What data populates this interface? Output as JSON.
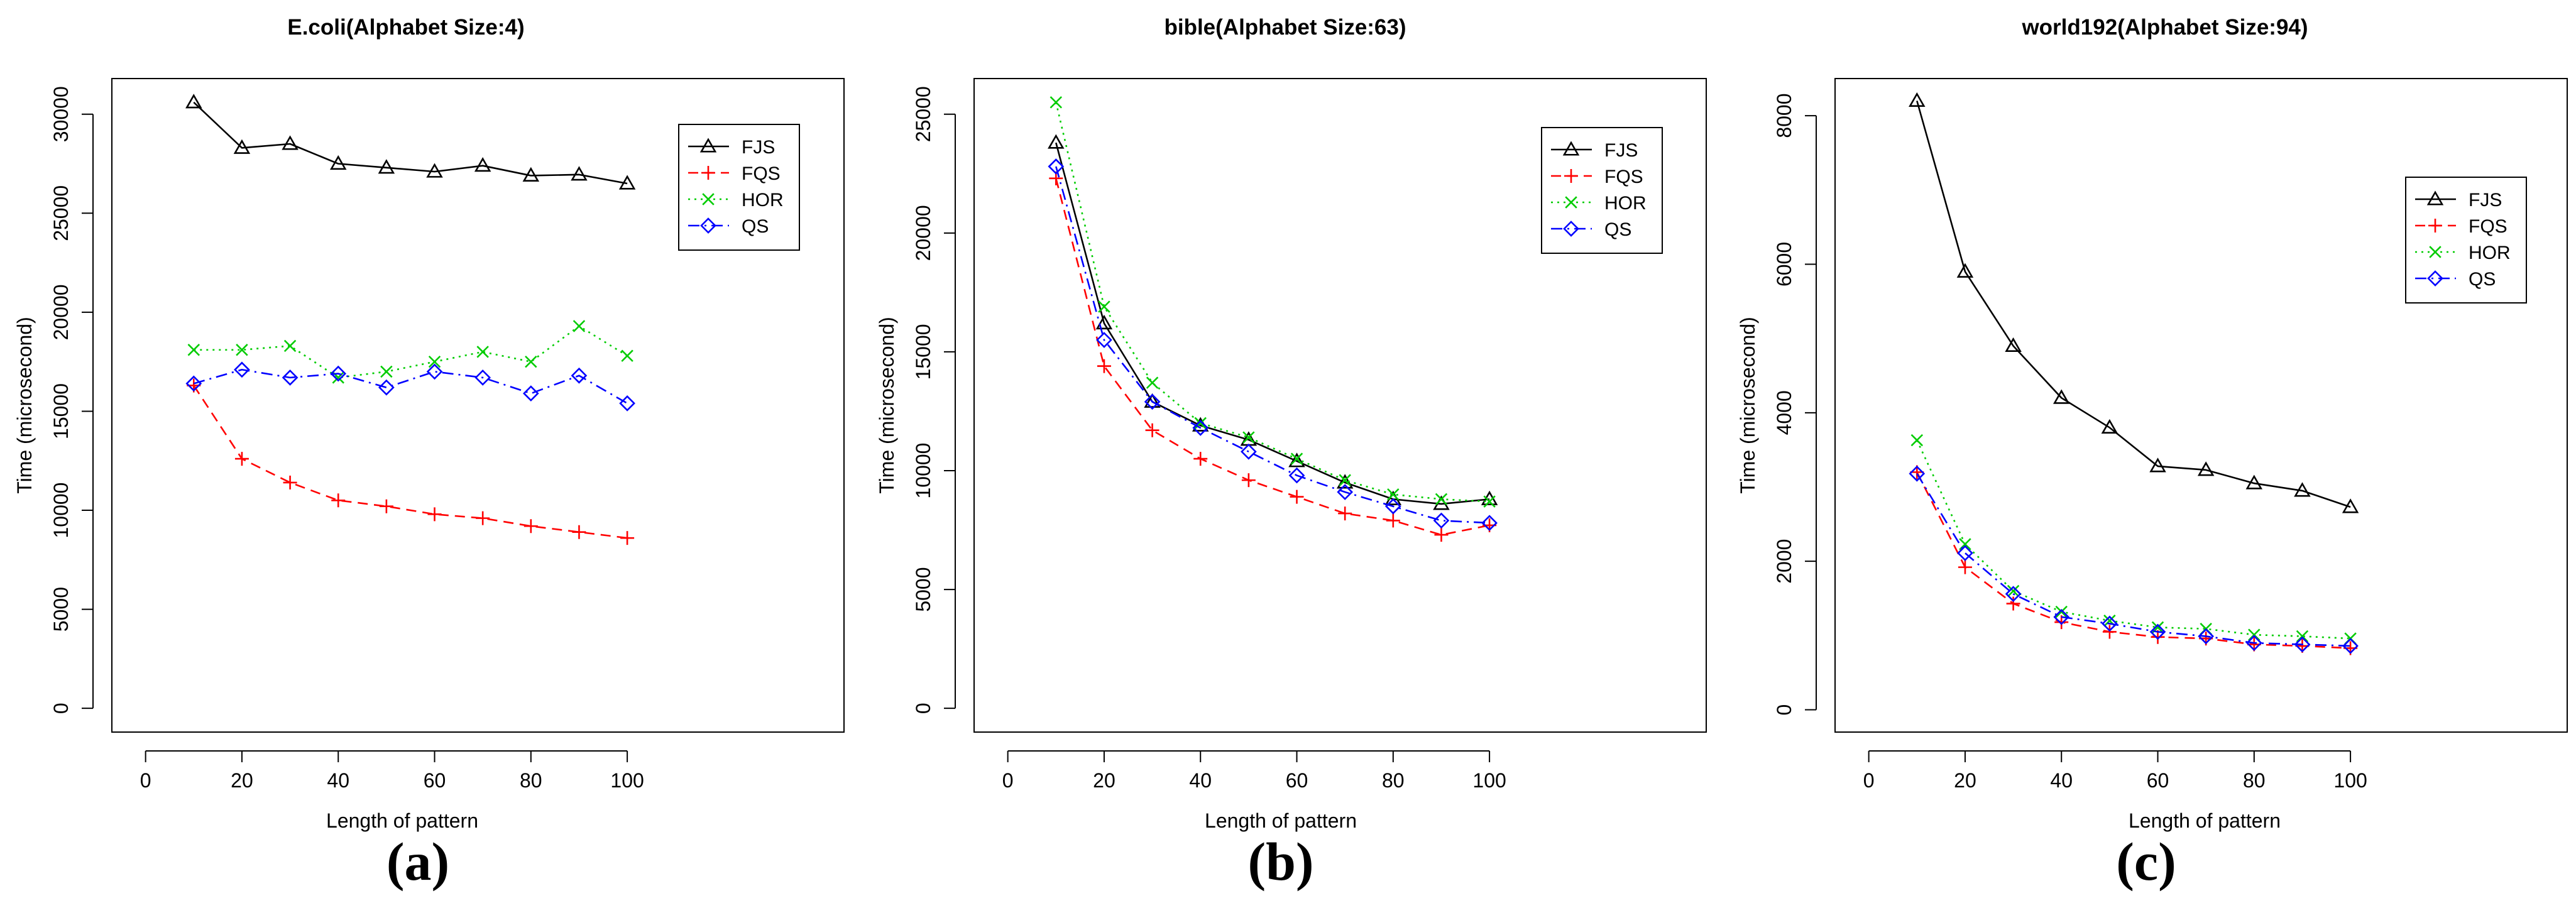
{
  "figure": {
    "panel_letters": [
      "(a)",
      "(b)",
      "(c)"
    ]
  },
  "chart_data": [
    {
      "type": "line",
      "title": "E.coli(Alphabet Size:4)",
      "xlabel": "Length of pattern",
      "ylabel": "Time (microsecond)",
      "xlim": [
        -7,
        145
      ],
      "ylim": [
        -1200,
        31800
      ],
      "xticks": [
        "0",
        "20",
        "40",
        "60",
        "80",
        "100"
      ],
      "yticks": [
        "0",
        "5000",
        "10000",
        "15000",
        "20000",
        "25000",
        "30000"
      ],
      "legend_position": "top-right",
      "x": [
        10,
        20,
        30,
        40,
        50,
        60,
        70,
        80,
        90,
        100
      ],
      "series": [
        {
          "name": "FJS",
          "color": "#000000",
          "marker": "triangle",
          "line": "solid",
          "values": [
            30600,
            28300,
            28500,
            27500,
            27300,
            27100,
            27400,
            26900,
            26950,
            26500
          ]
        },
        {
          "name": "FQS",
          "color": "#ff0000",
          "marker": "plus",
          "line": "dashed",
          "values": [
            16300,
            12600,
            11400,
            10500,
            10200,
            9800,
            9600,
            9200,
            8900,
            8600
          ]
        },
        {
          "name": "HOR",
          "color": "#00cc00",
          "marker": "cross",
          "line": "dotted",
          "values": [
            18100,
            18100,
            18300,
            16700,
            17000,
            17500,
            18000,
            17500,
            19300,
            17800
          ]
        },
        {
          "name": "QS",
          "color": "#0000ff",
          "marker": "diamond",
          "line": "dashdot",
          "values": [
            16400,
            17100,
            16700,
            16900,
            16200,
            17000,
            16700,
            15900,
            16800,
            15400
          ]
        }
      ]
    },
    {
      "type": "line",
      "title": "bible(Alphabet Size:63)",
      "xlabel": "Length of pattern",
      "ylabel": "Time (microsecond)",
      "xlim": [
        -7,
        145
      ],
      "ylim": [
        -1000,
        26500
      ],
      "xticks": [
        "0",
        "20",
        "40",
        "60",
        "80",
        "100"
      ],
      "yticks": [
        "0",
        "5000",
        "10000",
        "15000",
        "20000",
        "25000"
      ],
      "legend_position": "top-right",
      "x": [
        10,
        20,
        30,
        40,
        50,
        60,
        70,
        80,
        90,
        100
      ],
      "series": [
        {
          "name": "FJS",
          "color": "#000000",
          "marker": "triangle",
          "line": "solid",
          "values": [
            23800,
            16200,
            12900,
            11900,
            11300,
            10400,
            9500,
            8800,
            8600,
            8800
          ]
        },
        {
          "name": "FQS",
          "color": "#ff0000",
          "marker": "plus",
          "line": "dashed",
          "values": [
            22300,
            14400,
            11700,
            10500,
            9600,
            8900,
            8200,
            7900,
            7300,
            7700
          ]
        },
        {
          "name": "HOR",
          "color": "#00cc00",
          "marker": "cross",
          "line": "dotted",
          "values": [
            25500,
            16900,
            13700,
            12000,
            11400,
            10500,
            9600,
            9000,
            8800,
            8700
          ]
        },
        {
          "name": "QS",
          "color": "#0000ff",
          "marker": "diamond",
          "line": "dashdot",
          "values": [
            22800,
            15500,
            12900,
            11800,
            10800,
            9800,
            9100,
            8500,
            7900,
            7800
          ]
        }
      ]
    },
    {
      "type": "line",
      "title": "world192(Alphabet Size:94)",
      "xlabel": "Length of pattern",
      "ylabel": "Time (microsecond)",
      "xlim": [
        -7,
        145
      ],
      "ylim": [
        -300,
        8500
      ],
      "xticks": [
        "0",
        "20",
        "40",
        "60",
        "80",
        "100"
      ],
      "yticks": [
        "0",
        "2000",
        "4000",
        "6000",
        "8000"
      ],
      "legend_position": "top-right",
      "x": [
        10,
        20,
        30,
        40,
        50,
        60,
        70,
        80,
        90,
        100
      ],
      "series": [
        {
          "name": "FJS",
          "color": "#000000",
          "marker": "triangle",
          "line": "solid",
          "values": [
            8200,
            5900,
            4900,
            4200,
            3800,
            3280,
            3230,
            3050,
            2950,
            2730
          ]
        },
        {
          "name": "FQS",
          "color": "#ff0000",
          "marker": "plus",
          "line": "dashed",
          "values": [
            3200,
            1920,
            1430,
            1180,
            1050,
            980,
            960,
            880,
            860,
            830
          ]
        },
        {
          "name": "HOR",
          "color": "#00cc00",
          "marker": "cross",
          "line": "dotted",
          "values": [
            3630,
            2230,
            1600,
            1320,
            1200,
            1110,
            1090,
            1010,
            990,
            960
          ]
        },
        {
          "name": "QS",
          "color": "#0000ff",
          "marker": "diamond",
          "line": "dashdot",
          "values": [
            3180,
            2110,
            1560,
            1250,
            1160,
            1050,
            990,
            900,
            880,
            860
          ]
        }
      ]
    }
  ]
}
